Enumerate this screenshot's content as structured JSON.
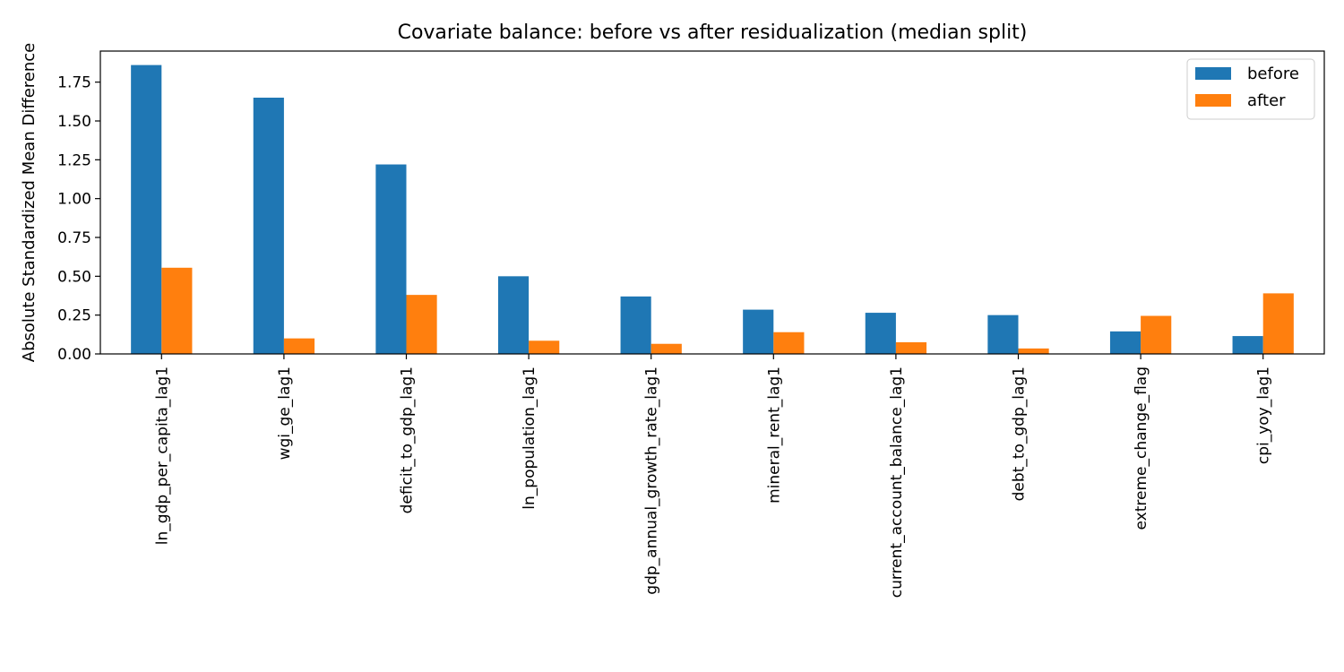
{
  "chart_data": {
    "type": "bar",
    "title": "Covariate balance: before vs after residualization (median split)",
    "xlabel": "",
    "ylabel": "Absolute Standardized Mean Difference",
    "ylim": [
      0,
      1.95
    ],
    "yticks": [
      0.0,
      0.25,
      0.5,
      0.75,
      1.0,
      1.25,
      1.5,
      1.75
    ],
    "ytick_labels": [
      "0.00",
      "0.25",
      "0.50",
      "0.75",
      "1.00",
      "1.25",
      "1.50",
      "1.75"
    ],
    "grid": false,
    "legend_position": "top-right",
    "categories": [
      "ln_gdp_per_capita_lag1",
      "wgi_ge_lag1",
      "deficit_to_gdp_lag1",
      "ln_population_lag1",
      "gdp_annual_growth_rate_lag1",
      "mineral_rent_lag1",
      "current_account_balance_lag1",
      "debt_to_gdp_lag1",
      "extreme_change_flag",
      "cpi_yoy_lag1"
    ],
    "series": [
      {
        "name": "before",
        "color": "#1f77b4",
        "values": [
          1.86,
          1.65,
          1.22,
          0.5,
          0.37,
          0.285,
          0.265,
          0.25,
          0.145,
          0.115
        ]
      },
      {
        "name": "after",
        "color": "#ff7f0e",
        "values": [
          0.555,
          0.1,
          0.38,
          0.085,
          0.065,
          0.14,
          0.075,
          0.035,
          0.245,
          0.39
        ]
      }
    ]
  }
}
